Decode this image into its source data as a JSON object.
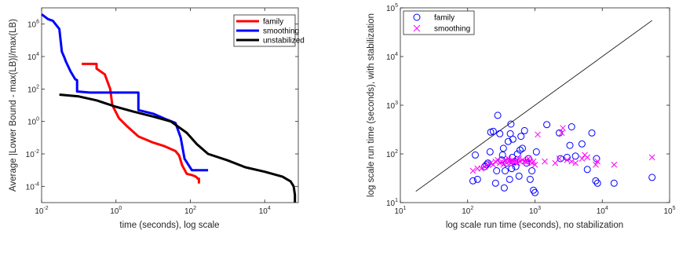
{
  "colors": {
    "family": "#ff0000",
    "smoothing": "#0000ff",
    "unstabilized": "#000000",
    "scatter_family": "#0000ff",
    "scatter_smoothing": "#ff00ff",
    "diagonal": "#000000"
  },
  "chart_data": [
    {
      "type": "line",
      "xlabel": "time (seconds), log scale",
      "ylabel": "Average |Lower Bound - max(LB)|/max(LB)",
      "xscale": "log",
      "yscale": "log",
      "xlim": [
        0.01,
        80000
      ],
      "ylim": [
        1e-05,
        10000000
      ],
      "xticks": [
        {
          "base": "10",
          "exp": "-2"
        },
        {
          "base": "10",
          "exp": "0"
        },
        {
          "base": "10",
          "exp": "2"
        },
        {
          "base": "10",
          "exp": "4"
        }
      ],
      "yticks": [
        {
          "base": "10",
          "exp": "-4"
        },
        {
          "base": "10",
          "exp": "-2"
        },
        {
          "base": "10",
          "exp": "0"
        },
        {
          "base": "10",
          "exp": "2"
        },
        {
          "base": "10",
          "exp": "4"
        },
        {
          "base": "10",
          "exp": "6"
        }
      ],
      "legend_position": "top-right",
      "series": [
        {
          "name": "family",
          "color": "#ff0000",
          "points": [
            [
              0.12,
              3500
            ],
            [
              0.3,
              3500
            ],
            [
              0.3,
              1800
            ],
            [
              0.5,
              800
            ],
            [
              0.7,
              100
            ],
            [
              0.8,
              10
            ],
            [
              1.2,
              1.6
            ],
            [
              2,
              0.5
            ],
            [
              4,
              0.12
            ],
            [
              10,
              0.05
            ],
            [
              20,
              0.03
            ],
            [
              40,
              0.015
            ],
            [
              50,
              0.008
            ],
            [
              60,
              0.002
            ],
            [
              80,
              0.0006
            ],
            [
              110,
              0.0005
            ],
            [
              140,
              0.0004
            ],
            [
              160,
              0.0003
            ],
            [
              170,
              0.0003
            ],
            [
              170,
              0.00015
            ]
          ]
        },
        {
          "name": "smoothing",
          "color": "#0000ff",
          "points": [
            [
              0.01,
              4000000
            ],
            [
              0.015,
              2000000
            ],
            [
              0.02,
              1600000
            ],
            [
              0.03,
              500000
            ],
            [
              0.035,
              20000
            ],
            [
              0.04,
              10000
            ],
            [
              0.045,
              5000
            ],
            [
              0.06,
              1200
            ],
            [
              0.08,
              400
            ],
            [
              0.09,
              350
            ],
            [
              0.09,
              70
            ],
            [
              0.2,
              60
            ],
            [
              1,
              60
            ],
            [
              3,
              60
            ],
            [
              4,
              60
            ],
            [
              4,
              5
            ],
            [
              10,
              3
            ],
            [
              20,
              1.5
            ],
            [
              40,
              0.8
            ],
            [
              55,
              0.1
            ],
            [
              70,
              0.005
            ],
            [
              110,
              0.001
            ],
            [
              300,
              0.001
            ]
          ]
        },
        {
          "name": "unstabilized",
          "color": "#000000",
          "points": [
            [
              0.03,
              45
            ],
            [
              0.1,
              35
            ],
            [
              0.3,
              20
            ],
            [
              1,
              8
            ],
            [
              3,
              4
            ],
            [
              10,
              2
            ],
            [
              30,
              1
            ],
            [
              80,
              0.2
            ],
            [
              150,
              0.04
            ],
            [
              300,
              0.01
            ],
            [
              1000,
              0.004
            ],
            [
              3000,
              0.0015
            ],
            [
              10000,
              0.0008
            ],
            [
              30000,
              0.0004
            ],
            [
              50000,
              0.0002
            ],
            [
              60000,
              0.0001
            ],
            [
              65000,
              3e-05
            ],
            [
              65000,
              1e-05
            ]
          ]
        }
      ]
    },
    {
      "type": "scatter",
      "xlabel": "log scale run time (seconds), no stabilization",
      "ylabel": "log scale run time (seconds), with stabilization",
      "xscale": "log",
      "yscale": "log",
      "xlim": [
        10,
        100000
      ],
      "ylim": [
        10,
        100000
      ],
      "xticks": [
        {
          "base": "10",
          "exp": "1"
        },
        {
          "base": "10",
          "exp": "2"
        },
        {
          "base": "10",
          "exp": "3"
        },
        {
          "base": "10",
          "exp": "4"
        },
        {
          "base": "10",
          "exp": "5"
        }
      ],
      "yticks": [
        {
          "base": "10",
          "exp": "1"
        },
        {
          "base": "10",
          "exp": "2"
        },
        {
          "base": "10",
          "exp": "3"
        },
        {
          "base": "10",
          "exp": "4"
        },
        {
          "base": "10",
          "exp": "5"
        }
      ],
      "legend_position": "top-left",
      "diagonal": [
        [
          17,
          17
        ],
        [
          55000,
          55000
        ]
      ],
      "series": [
        {
          "name": "family",
          "marker": "circle",
          "color": "#0000ff",
          "points": [
            [
              120,
              28
            ],
            [
              130,
              95
            ],
            [
              140,
              30
            ],
            [
              180,
              55
            ],
            [
              190,
              60
            ],
            [
              200,
              65
            ],
            [
              215,
              110
            ],
            [
              220,
              280
            ],
            [
              240,
              290
            ],
            [
              260,
              25
            ],
            [
              270,
              45
            ],
            [
              280,
              620
            ],
            [
              300,
              260
            ],
            [
              320,
              75
            ],
            [
              330,
              95
            ],
            [
              340,
              130
            ],
            [
              350,
              20
            ],
            [
              360,
              45
            ],
            [
              380,
              65
            ],
            [
              400,
              180
            ],
            [
              420,
              30
            ],
            [
              430,
              260
            ],
            [
              440,
              410
            ],
            [
              450,
              50
            ],
            [
              460,
              85
            ],
            [
              470,
              200
            ],
            [
              500,
              70
            ],
            [
              520,
              55
            ],
            [
              550,
              100
            ],
            [
              580,
              35
            ],
            [
              600,
              120
            ],
            [
              620,
              230
            ],
            [
              650,
              130
            ],
            [
              700,
              300
            ],
            [
              750,
              65
            ],
            [
              800,
              80
            ],
            [
              850,
              30
            ],
            [
              900,
              45
            ],
            [
              950,
              18
            ],
            [
              1000,
              16
            ],
            [
              1050,
              110
            ],
            [
              1500,
              400
            ],
            [
              2300,
              270
            ],
            [
              2400,
              80
            ],
            [
              3000,
              85
            ],
            [
              3300,
              150
            ],
            [
              3500,
              360
            ],
            [
              4000,
              90
            ],
            [
              5000,
              160
            ],
            [
              6000,
              48
            ],
            [
              7000,
              270
            ],
            [
              8000,
              28
            ],
            [
              8200,
              80
            ],
            [
              8500,
              25
            ],
            [
              15000,
              25
            ],
            [
              55000,
              33
            ]
          ]
        },
        {
          "name": "smoothing",
          "marker": "x",
          "color": "#ff00ff",
          "points": [
            [
              120,
              45
            ],
            [
              140,
              50
            ],
            [
              160,
              50
            ],
            [
              180,
              55
            ],
            [
              200,
              60
            ],
            [
              220,
              65
            ],
            [
              240,
              60
            ],
            [
              260,
              70
            ],
            [
              280,
              75
            ],
            [
              300,
              65
            ],
            [
              320,
              70
            ],
            [
              340,
              60
            ],
            [
              360,
              75
            ],
            [
              380,
              65
            ],
            [
              400,
              80
            ],
            [
              420,
              70
            ],
            [
              440,
              65
            ],
            [
              460,
              75
            ],
            [
              480,
              70
            ],
            [
              500,
              68
            ],
            [
              520,
              72
            ],
            [
              550,
              65
            ],
            [
              580,
              80
            ],
            [
              600,
              70
            ],
            [
              650,
              75
            ],
            [
              700,
              70
            ],
            [
              750,
              68
            ],
            [
              800,
              80
            ],
            [
              850,
              70
            ],
            [
              900,
              65
            ],
            [
              950,
              70
            ],
            [
              1000,
              60
            ],
            [
              1100,
              250
            ],
            [
              1400,
              70
            ],
            [
              2000,
              65
            ],
            [
              2300,
              80
            ],
            [
              2500,
              270
            ],
            [
              2600,
              340
            ],
            [
              3000,
              75
            ],
            [
              3500,
              70
            ],
            [
              4000,
              65
            ],
            [
              5000,
              80
            ],
            [
              5500,
              95
            ],
            [
              6000,
              85
            ],
            [
              8000,
              60
            ],
            [
              8500,
              70
            ],
            [
              15000,
              60
            ],
            [
              55000,
              85
            ]
          ]
        }
      ]
    }
  ]
}
